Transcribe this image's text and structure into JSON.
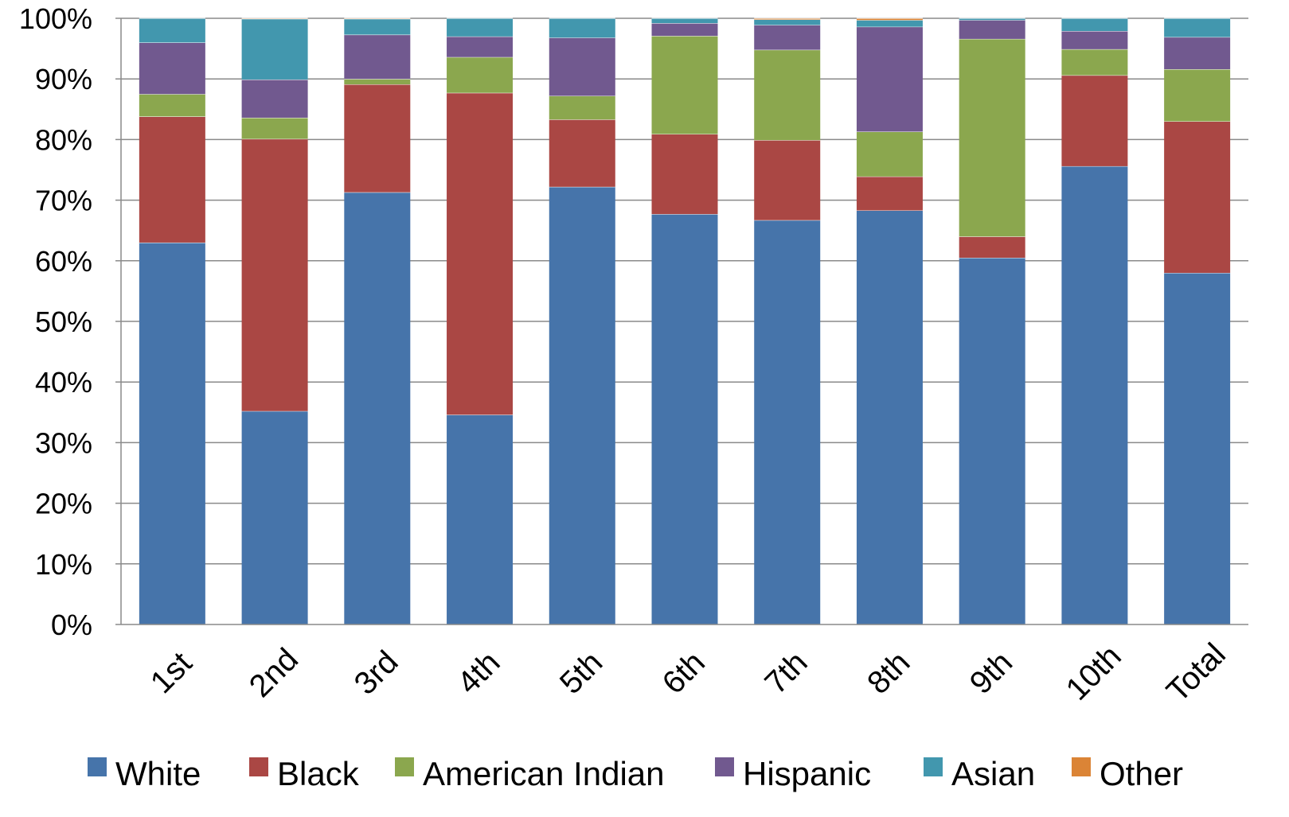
{
  "chart_data": {
    "type": "bar",
    "stacked": true,
    "normalized_percent": true,
    "categories": [
      "1st",
      "2nd",
      "3rd",
      "4th",
      "5th",
      "6th",
      "7th",
      "8th",
      "9th",
      "10th",
      "Total"
    ],
    "ylim": [
      0,
      100
    ],
    "yticks": [
      "0%",
      "10%",
      "20%",
      "30%",
      "40%",
      "50%",
      "60%",
      "70%",
      "80%",
      "90%",
      "100%"
    ],
    "grid": true,
    "legend_position": "bottom",
    "series": [
      {
        "name": "White",
        "color": "#4674AA",
        "values": [
          63.0,
          35.2,
          71.3,
          34.6,
          72.2,
          67.7,
          66.7,
          68.3,
          60.5,
          75.6,
          58.0
        ]
      },
      {
        "name": "Black",
        "color": "#AA4744",
        "values": [
          20.8,
          44.9,
          17.8,
          53.1,
          11.1,
          13.2,
          13.2,
          5.6,
          3.5,
          15.0,
          25.0
        ]
      },
      {
        "name": "American Indian",
        "color": "#8BA74E",
        "values": [
          3.7,
          3.5,
          0.9,
          5.9,
          3.9,
          16.2,
          14.9,
          7.4,
          32.6,
          4.3,
          8.6
        ]
      },
      {
        "name": "Hispanic",
        "color": "#71598F",
        "values": [
          8.5,
          6.3,
          7.3,
          3.4,
          9.6,
          2.1,
          4.1,
          17.3,
          3.1,
          3.0,
          5.3
        ]
      },
      {
        "name": "Asian",
        "color": "#4297AE",
        "values": [
          4.0,
          10.0,
          2.6,
          3.0,
          3.2,
          0.8,
          0.9,
          1.1,
          0.3,
          2.1,
          3.1
        ]
      },
      {
        "name": "Other",
        "color": "#DB8436",
        "values": [
          0.0,
          0.1,
          0.1,
          0.0,
          0.0,
          0.0,
          0.2,
          0.3,
          0.0,
          0.0,
          0.0
        ]
      }
    ]
  }
}
